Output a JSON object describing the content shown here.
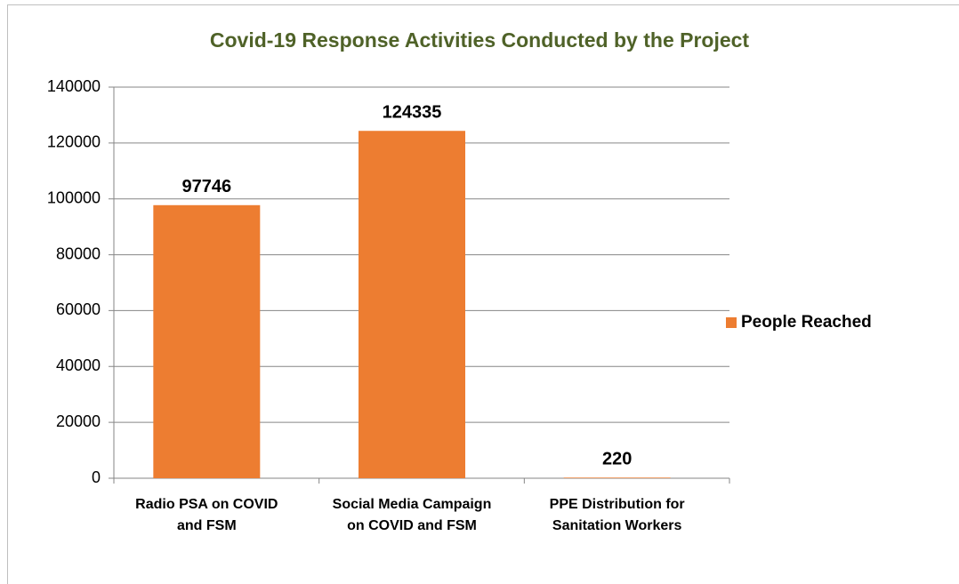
{
  "chart_data": {
    "type": "bar",
    "title": "Covid-19 Response Activities Conducted by the Project",
    "categories": [
      "Radio PSA on COVID and FSM",
      "Social Media Campaign on COVID and FSM",
      "PPE Distribution for Sanitation Workers"
    ],
    "series": [
      {
        "name": "People Reached",
        "color": "#ed7d31",
        "values": [
          97746,
          124335,
          220
        ]
      }
    ],
    "ylim": [
      0,
      140000
    ],
    "yticks": [
      0,
      20000,
      40000,
      60000,
      80000,
      100000,
      120000,
      140000
    ],
    "grid": true,
    "legend": "right"
  }
}
